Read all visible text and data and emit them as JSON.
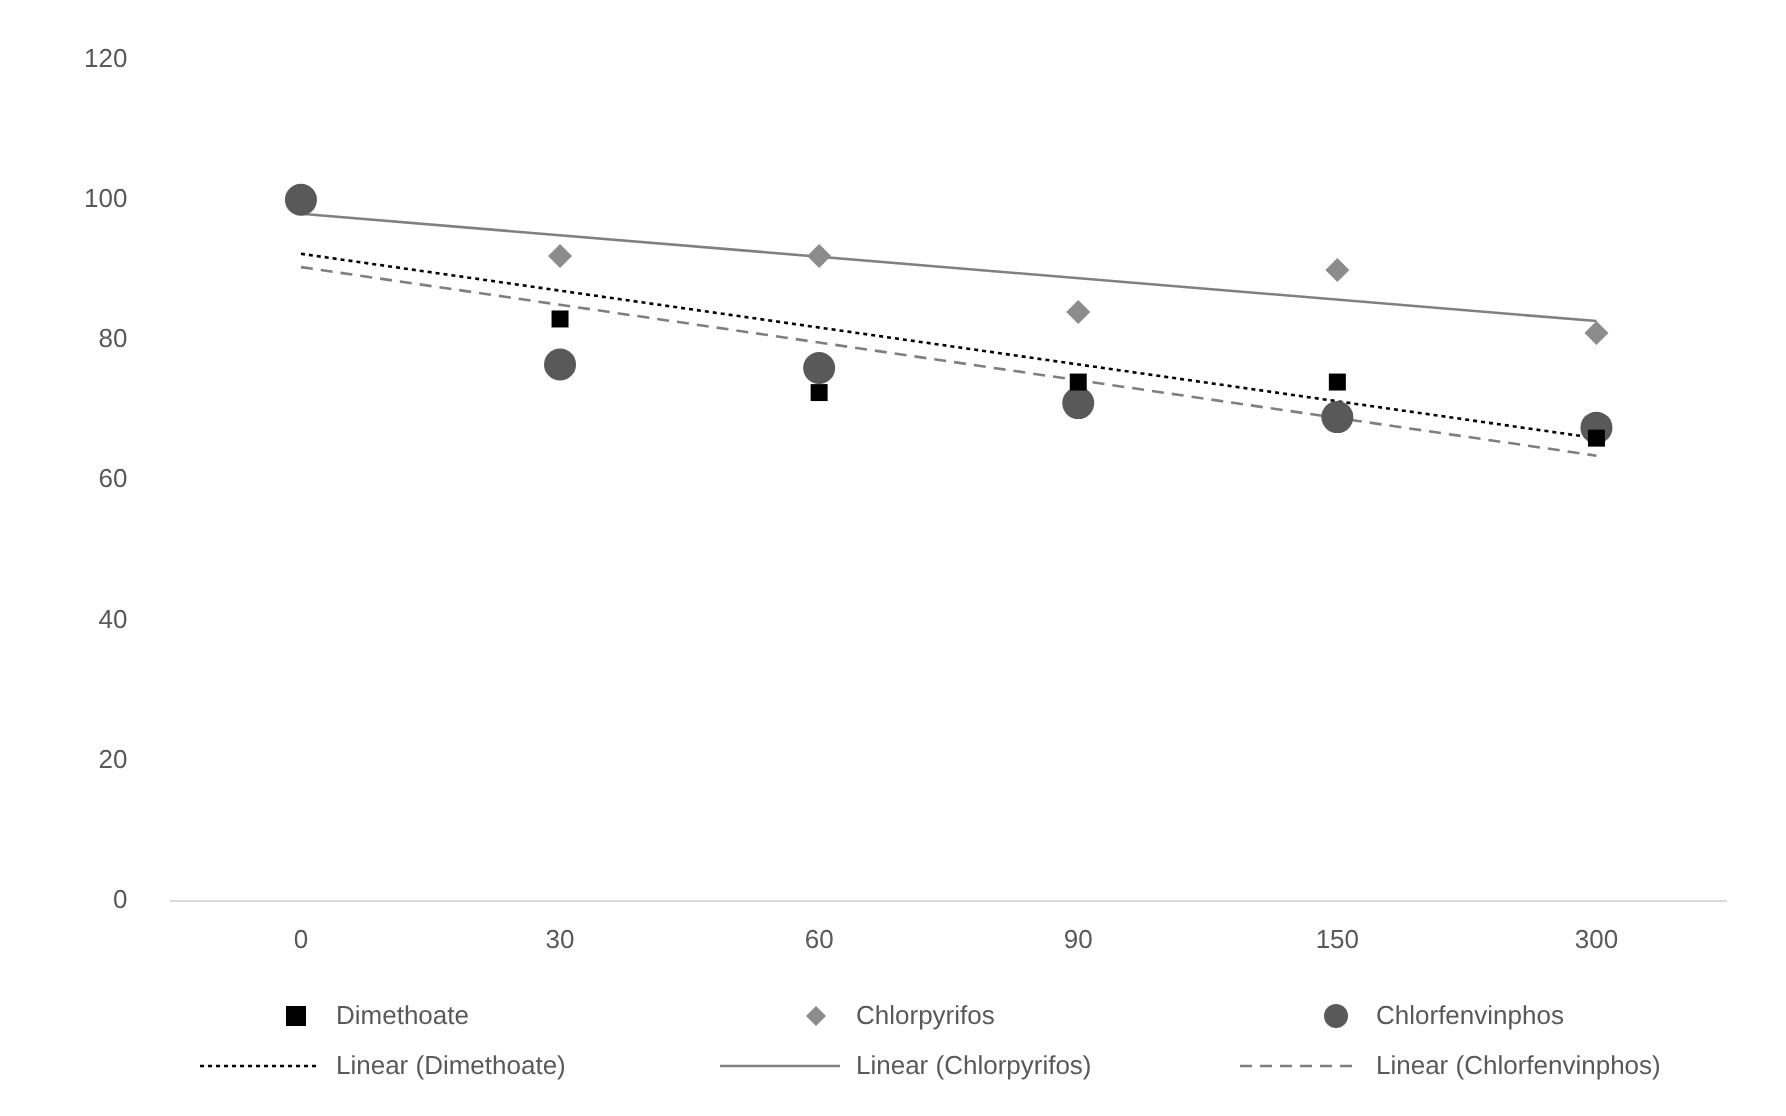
{
  "chart_data": {
    "type": "scatter",
    "categories": [
      "0",
      "30",
      "60",
      "90",
      "150",
      "300"
    ],
    "ylim": [
      0,
      120
    ],
    "yticks": [
      0,
      20,
      40,
      60,
      80,
      100,
      120
    ],
    "grid": false,
    "legend": "bottom",
    "series": [
      {
        "name": "Dimethoate",
        "color": "#000000",
        "marker": "square",
        "values": [
          null,
          83,
          72.5,
          74,
          74,
          66
        ]
      },
      {
        "name": "Chlorpyrifos",
        "color": "#8c8c8c",
        "marker": "diamond",
        "values": [
          null,
          92,
          92,
          84,
          90,
          81
        ]
      },
      {
        "name": "Chlorfenvinphos",
        "color": "#595959",
        "marker": "circle",
        "values": [
          100,
          76.5,
          76,
          71,
          69,
          67.5
        ]
      },
      {
        "name": "Linear (Dimethoate)",
        "type": "line",
        "color": "#000000",
        "line_style": "dotted",
        "marker": "none",
        "x": [
          "0",
          "300"
        ],
        "values": [
          92.3,
          66
        ]
      },
      {
        "name": "Linear (Chlorpyrifos)",
        "type": "line",
        "color": "#808080",
        "line_style": "solid",
        "marker": "none",
        "x": [
          "0",
          "300"
        ],
        "values": [
          98,
          82.7
        ]
      },
      {
        "name": "Linear (Chlorfenvinphos)",
        "type": "line",
        "color": "#7f7f7f",
        "line_style": "dashed",
        "marker": "none",
        "x": [
          "0",
          "300"
        ],
        "values": [
          90.4,
          63.5
        ]
      }
    ]
  }
}
